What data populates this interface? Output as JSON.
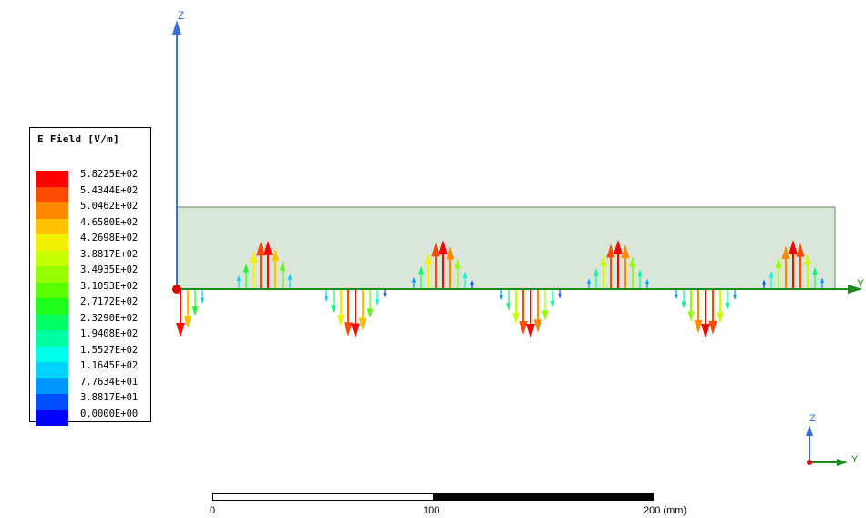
{
  "legend": {
    "title": "E Field [V/m]",
    "levels": [
      {
        "value": "5.8225E+02",
        "color": "#ff0000"
      },
      {
        "value": "5.4344E+02",
        "color": "#ff4a00"
      },
      {
        "value": "5.0462E+02",
        "color": "#ff8a00"
      },
      {
        "value": "4.6580E+02",
        "color": "#ffc000"
      },
      {
        "value": "4.2698E+02",
        "color": "#f0f000"
      },
      {
        "value": "3.8817E+02",
        "color": "#c8ff00"
      },
      {
        "value": "3.4935E+02",
        "color": "#96ff00"
      },
      {
        "value": "3.1053E+02",
        "color": "#5aff00"
      },
      {
        "value": "2.7172E+02",
        "color": "#1eff1e"
      },
      {
        "value": "2.3290E+02",
        "color": "#00ff64"
      },
      {
        "value": "1.9408E+02",
        "color": "#00ffa0"
      },
      {
        "value": "1.5527E+02",
        "color": "#00ffe6"
      },
      {
        "value": "1.1645E+02",
        "color": "#00d2ff"
      },
      {
        "value": "7.7634E+01",
        "color": "#0096ff"
      },
      {
        "value": "3.8817E+01",
        "color": "#0050ff"
      },
      {
        "value": "0.0000E+00",
        "color": "#0000ff"
      }
    ]
  },
  "axes": {
    "z_label": "Z",
    "y_label": "Y",
    "z_color": "#3a6fd8",
    "y_color": "#1a8a1a",
    "origin_color": "#e00000"
  },
  "triad": {
    "z_label": "Z",
    "y_label": "Y"
  },
  "plane_color": "#d9e6d9",
  "scale": {
    "ticks": [
      "0",
      "100",
      "200 (mm)"
    ]
  }
}
